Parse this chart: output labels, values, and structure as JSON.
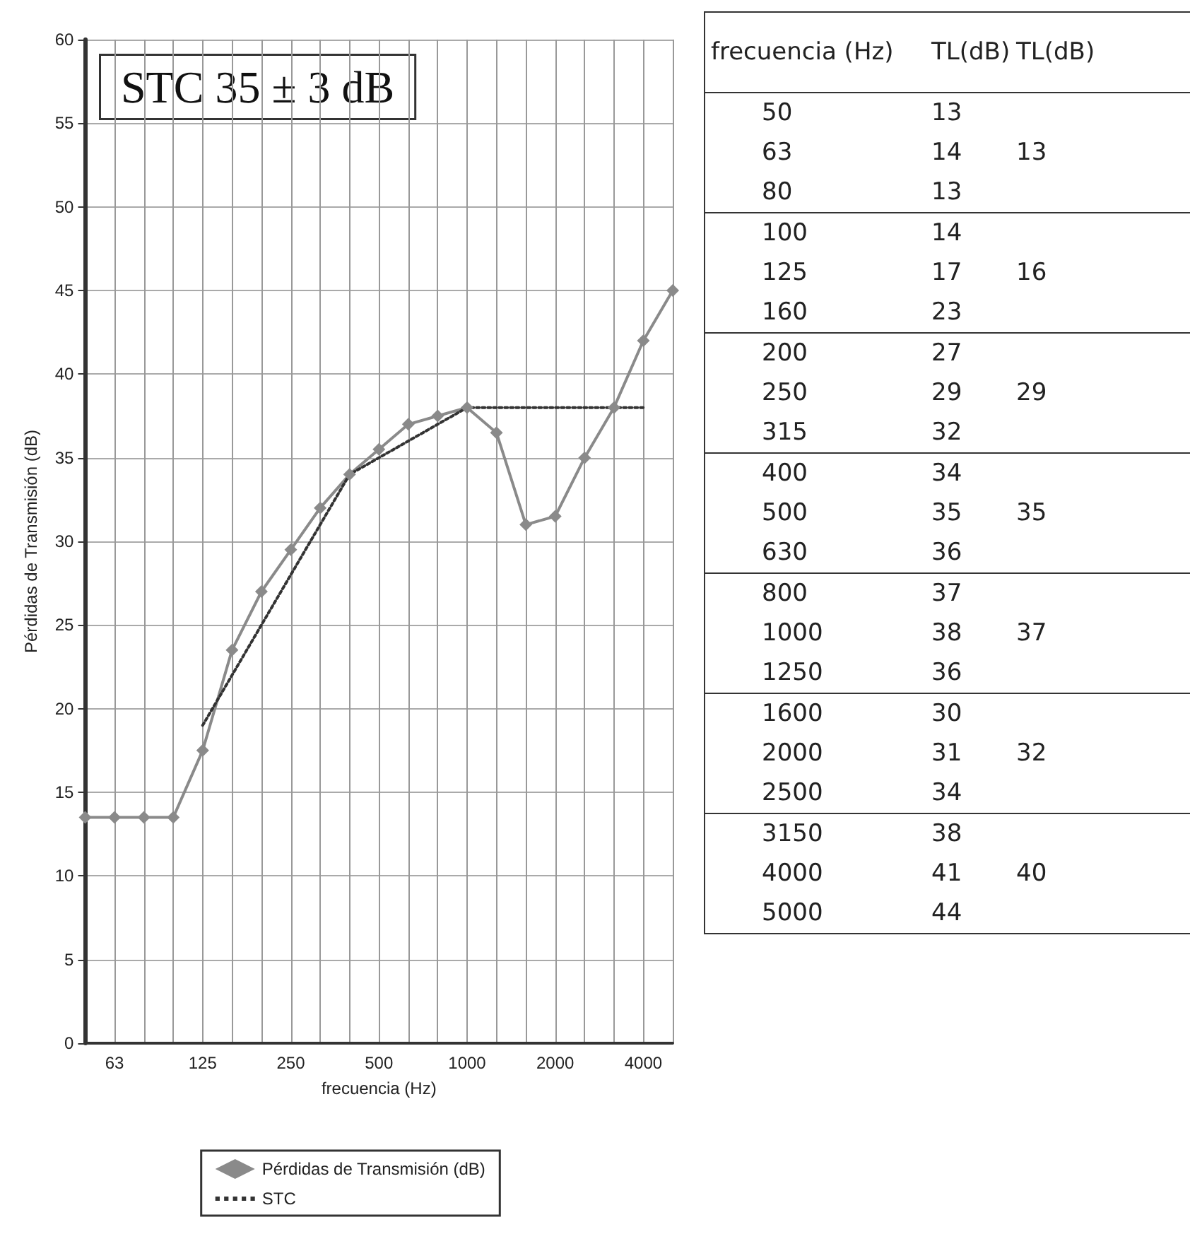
{
  "chart_data": [
    {
      "type": "line",
      "xlabel": "frecuencia (Hz)",
      "ylabel": "Pérdidas de Transmisión (dB)",
      "annotations": [
        "STC 35 ± 3 dB"
      ],
      "categories": [
        null,
        "63",
        null,
        null,
        "125",
        null,
        null,
        "250",
        null,
        null,
        "500",
        null,
        null,
        "1000",
        null,
        null,
        "2000",
        null,
        null,
        "4000",
        null
      ],
      "series": [
        {
          "name": "Pérdidas de Transmisión (dB)",
          "color": "#8a8a8a",
          "marker": "diamond",
          "line_style": "solid",
          "values": [
            13.5,
            13.5,
            13.5,
            13.5,
            17.5,
            23.5,
            27,
            29.5,
            32,
            34,
            35.5,
            37,
            37.5,
            38,
            36.5,
            31,
            31.5,
            35,
            38,
            42,
            45
          ]
        },
        {
          "name": "STC",
          "color": "#333333",
          "marker": "none",
          "line_style": "dotted",
          "values": [
            null,
            null,
            null,
            null,
            19,
            22,
            25,
            28,
            31,
            34,
            35,
            36,
            37,
            38,
            38,
            38,
            38,
            38,
            38,
            38,
            null
          ]
        }
      ],
      "ylim": [
        0,
        60
      ],
      "yticks": [
        0,
        5,
        10,
        15,
        20,
        25,
        30,
        35,
        40,
        45,
        50,
        55,
        60
      ],
      "grid": true,
      "legend": "bottom"
    },
    {
      "type": "other",
      "xlabel": "frecuencia (Hz)",
      "data_labels": true,
      "categories": [
        "50",
        "63",
        "80",
        "100",
        "125",
        "160",
        "200",
        "250",
        "315",
        "400",
        "500",
        "630",
        "800",
        "1000",
        "1250",
        "1600",
        "2000",
        "2500",
        "3150",
        "4000",
        "5000"
      ],
      "series": [
        {
          "name": "TL(dB)",
          "values": [
            13,
            14,
            13,
            14,
            17,
            23,
            27,
            29,
            32,
            34,
            35,
            36,
            37,
            38,
            36,
            30,
            31,
            34,
            38,
            41,
            44
          ]
        },
        {
          "name": "TL(dB)",
          "values": [
            null,
            13,
            null,
            null,
            16,
            null,
            null,
            29,
            null,
            null,
            35,
            null,
            null,
            37,
            null,
            null,
            32,
            null,
            null,
            40,
            null
          ]
        }
      ]
    }
  ]
}
